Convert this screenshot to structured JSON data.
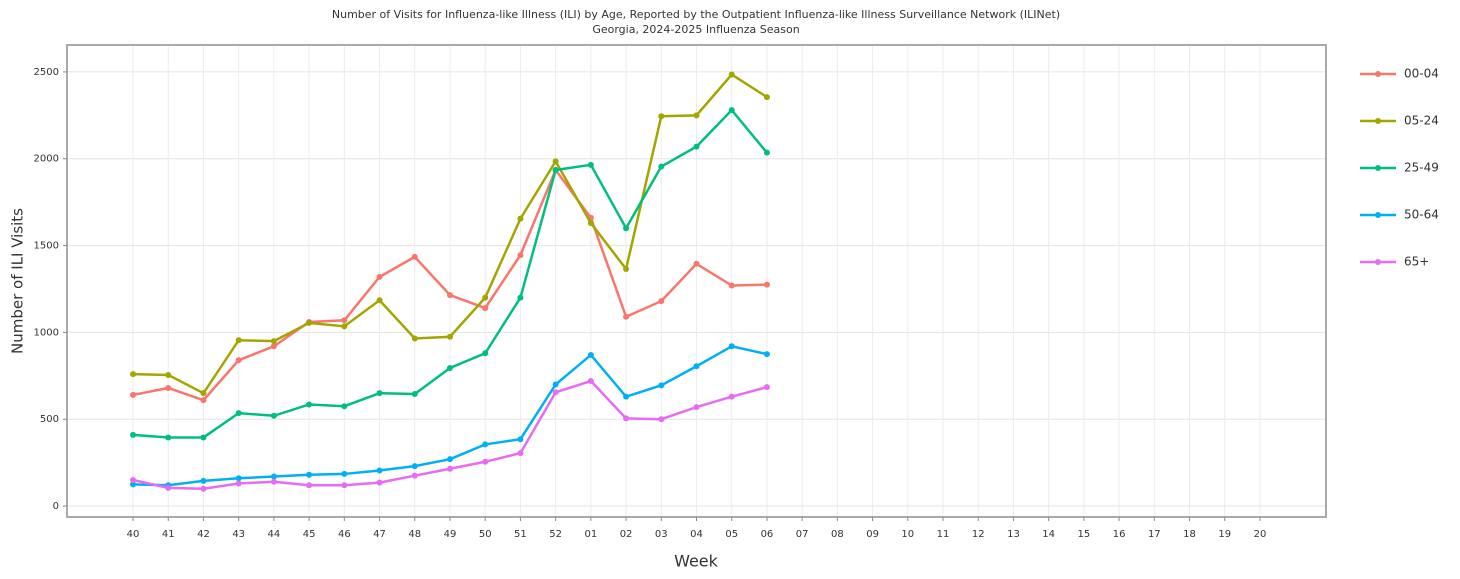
{
  "chart_data": {
    "type": "line",
    "title": "Number of Visits for Influenza-like Illness (ILI) by Age, Reported by the Outpatient Influenza-like Illness Surveillance Network (ILINet)",
    "subtitle": "Georgia, 2024-2025 Influenza Season",
    "x_label": "Week",
    "y_label": "Number of ILI Visits",
    "categories": [
      "40",
      "41",
      "42",
      "43",
      "44",
      "45",
      "46",
      "47",
      "48",
      "49",
      "50",
      "51",
      "52",
      "01",
      "02",
      "03",
      "04",
      "05",
      "06",
      "07",
      "08",
      "09",
      "10",
      "11",
      "12",
      "13",
      "14",
      "15",
      "16",
      "17",
      "18",
      "19",
      "20"
    ],
    "series": [
      {
        "name": "00-04",
        "color": "#F8766D",
        "values": [
          640,
          680,
          610,
          840,
          920,
          1060,
          1070,
          1320,
          1435,
          1215,
          1140,
          1445,
          1935,
          1660,
          1090,
          1180,
          1395,
          1270,
          1275,
          null,
          null,
          null,
          null,
          null,
          null,
          null,
          null,
          null,
          null,
          null,
          null,
          null,
          null
        ]
      },
      {
        "name": "05-24",
        "color": "#A3A500",
        "values": [
          760,
          755,
          650,
          955,
          950,
          1055,
          1035,
          1185,
          965,
          975,
          1200,
          1655,
          1985,
          1630,
          1365,
          2245,
          2250,
          2485,
          2355,
          null,
          null,
          null,
          null,
          null,
          null,
          null,
          null,
          null,
          null,
          null,
          null,
          null,
          null
        ]
      },
      {
        "name": "25-49",
        "color": "#00BF7D",
        "values": [
          410,
          395,
          395,
          535,
          520,
          585,
          575,
          650,
          645,
          795,
          880,
          1200,
          1935,
          1965,
          1600,
          1955,
          2070,
          2280,
          2035,
          null,
          null,
          null,
          null,
          null,
          null,
          null,
          null,
          null,
          null,
          null,
          null,
          null,
          null
        ]
      },
      {
        "name": "50-64",
        "color": "#00B0F6",
        "values": [
          125,
          120,
          145,
          160,
          170,
          180,
          185,
          205,
          230,
          270,
          355,
          385,
          700,
          870,
          630,
          695,
          805,
          920,
          875,
          null,
          null,
          null,
          null,
          null,
          null,
          null,
          null,
          null,
          null,
          null,
          null,
          null,
          null
        ]
      },
      {
        "name": "65+",
        "color": "#E76BF3",
        "values": [
          150,
          105,
          100,
          130,
          140,
          120,
          120,
          135,
          175,
          215,
          255,
          305,
          655,
          720,
          505,
          500,
          570,
          630,
          685,
          null,
          null,
          null,
          null,
          null,
          null,
          null,
          null,
          null,
          null,
          null,
          null,
          null,
          null
        ]
      }
    ],
    "ylim": [
      -63,
      2655
    ],
    "yticks": [
      0,
      500,
      1000,
      1500,
      2000,
      2500
    ],
    "grid": true,
    "legend": "right"
  }
}
